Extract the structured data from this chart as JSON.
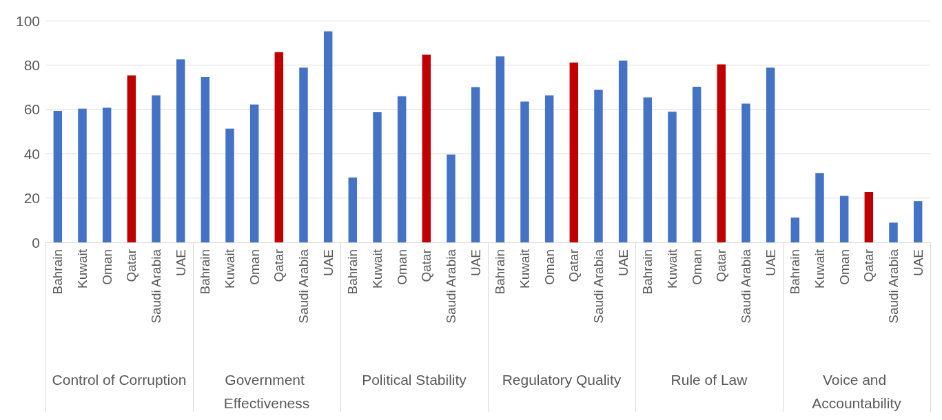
{
  "chart_data": {
    "type": "bar",
    "categories": [
      "Bahrain",
      "Kuwait",
      "Oman",
      "Qatar",
      "Saudi Arabia",
      "UAE",
      "Bahrain",
      "Kuwait",
      "Oman",
      "Qatar",
      "Saudi Arabia",
      "UAE",
      "Bahrain",
      "Kuwait",
      "Oman",
      "Qatar",
      "Saudi Arabia",
      "UAE",
      "Bahrain",
      "Kuwait",
      "Oman",
      "Qatar",
      "Saudi Arabia",
      "UAE",
      "Bahrain",
      "Kuwait",
      "Oman",
      "Qatar",
      "Saudi Arabia",
      "UAE",
      "Bahrain",
      "Kuwait",
      "Oman",
      "Qatar",
      "Saudi Arabia",
      "UAE"
    ],
    "values": [
      59.3,
      60.3,
      60.7,
      75.3,
      66.3,
      82.5,
      74.5,
      51.3,
      62.2,
      85.8,
      78.8,
      95.2,
      29.3,
      58.7,
      65.9,
      84.6,
      39.6,
      70.0,
      83.9,
      63.5,
      66.3,
      81.1,
      68.8,
      82.0,
      65.4,
      58.9,
      70.2,
      80.3,
      62.6,
      78.8,
      11.2,
      31.3,
      21.0,
      22.7,
      8.9,
      18.6
    ],
    "colors": [
      "#4472c4",
      "#4472c4",
      "#4472c4",
      "#c00000",
      "#4472c4",
      "#4472c4",
      "#4472c4",
      "#4472c4",
      "#4472c4",
      "#c00000",
      "#4472c4",
      "#4472c4",
      "#4472c4",
      "#4472c4",
      "#4472c4",
      "#c00000",
      "#4472c4",
      "#4472c4",
      "#4472c4",
      "#4472c4",
      "#4472c4",
      "#c00000",
      "#4472c4",
      "#4472c4",
      "#4472c4",
      "#4472c4",
      "#4472c4",
      "#c00000",
      "#4472c4",
      "#4472c4",
      "#4472c4",
      "#4472c4",
      "#4472c4",
      "#c00000",
      "#4472c4",
      "#4472c4"
    ],
    "annotations": [
      "Control of Corruption",
      "Government Effectiveness",
      "Political Stability",
      "Regulatory Quality",
      "Rule of Law",
      "Voice and Accountability"
    ],
    "ylim": [
      0,
      100
    ],
    "yticks": [
      0,
      20,
      40,
      60,
      80,
      100
    ],
    "grid": "y"
  }
}
